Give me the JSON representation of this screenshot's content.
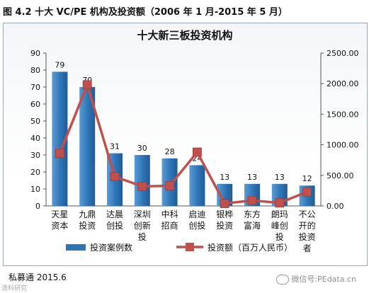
{
  "figure": {
    "caption": "图 4.2  十大 VC/PE 机构及投资额（2006 年 1 月-2015 年 5 月）",
    "source": "私募通 2015.6",
    "watermark": "微信号:PEdata.cn",
    "watermark_left": "清科研究"
  },
  "chart_data": {
    "type": "bar",
    "title": "十大新三板投资机构",
    "categories": [
      [
        "天星",
        "资本"
      ],
      [
        "九鼎",
        "投资"
      ],
      [
        "达晨",
        "创投"
      ],
      [
        "深圳",
        "创新",
        "投"
      ],
      [
        "中科",
        "招商"
      ],
      [
        "启迪",
        "创投"
      ],
      [
        "银桦",
        "投资"
      ],
      [
        "东方",
        "富海"
      ],
      [
        "朗玛",
        "峰创",
        "投"
      ],
      [
        "不公",
        "开的",
        "投资",
        "者"
      ]
    ],
    "series": [
      {
        "name": "投资案例数",
        "type": "bar",
        "axis": "left",
        "color": "#2e75b6",
        "values": [
          79,
          70,
          31,
          30,
          28,
          24,
          13,
          13,
          13,
          12
        ]
      },
      {
        "name": "投资额（百万人民币）",
        "type": "line",
        "axis": "right",
        "color": "#c0504d",
        "marker": "square",
        "values": [
          860,
          1980,
          480,
          320,
          330,
          880,
          40,
          90,
          50,
          230
        ]
      }
    ],
    "left_axis": {
      "min": 0,
      "max": 90,
      "step": 10,
      "ticks": [
        "0",
        "10",
        "20",
        "30",
        "40",
        "50",
        "60",
        "70",
        "80",
        "90"
      ]
    },
    "right_axis": {
      "min": 0,
      "max": 2500,
      "step": 500,
      "ticks": [
        "0.00",
        "500.00",
        "1000.00",
        "1500.00",
        "2000.00",
        "2500.00"
      ]
    },
    "bar_labels": [
      "79",
      "70",
      "31",
      "30",
      "28",
      "24",
      "13",
      "13",
      "13",
      "12"
    ],
    "grid": false,
    "legend_position": "bottom"
  }
}
